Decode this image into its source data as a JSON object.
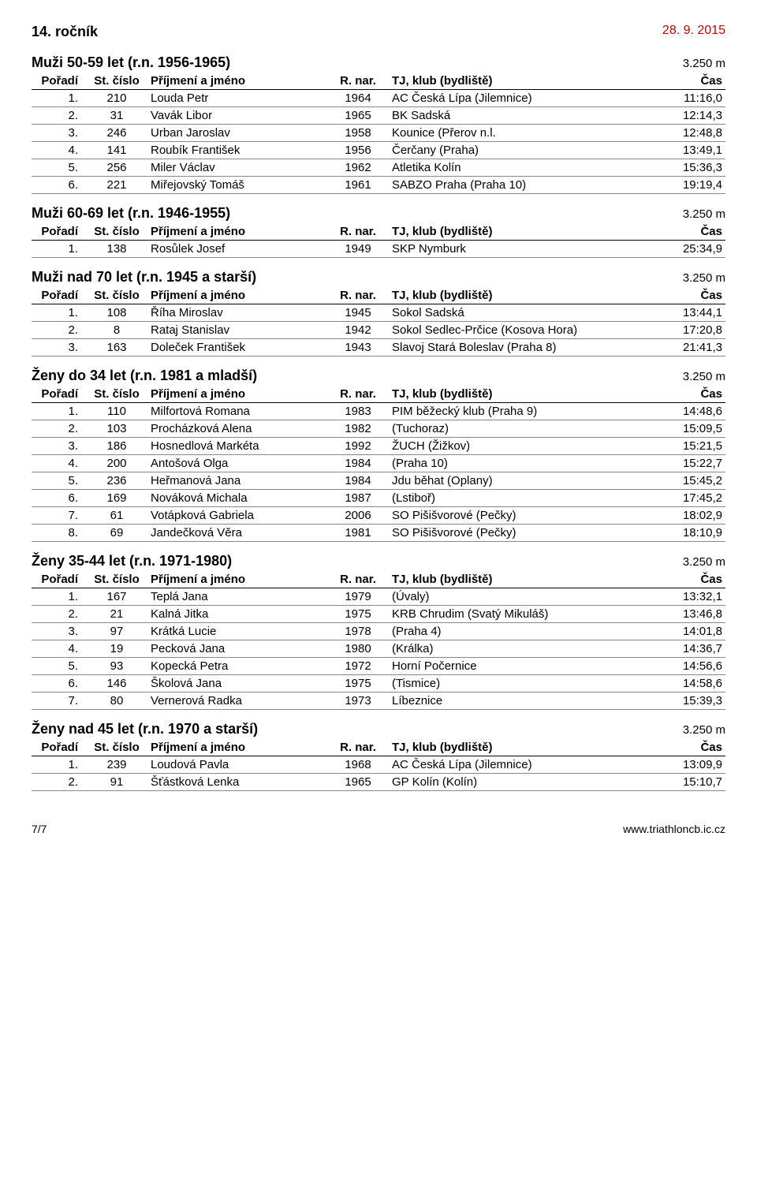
{
  "header": {
    "left": "14. ročník",
    "right": "28. 9. 2015"
  },
  "columns": {
    "poradi": "Pořadí",
    "stcislo": "St. číslo",
    "jmeno": "Příjmení a jméno",
    "narozen": "R. nar.",
    "klub": "TJ, klub (bydliště)",
    "cas": "Čas"
  },
  "sections": [
    {
      "title": "Muži 50-59 let (r.n. 1956-1965)",
      "distance": "3.250 m",
      "rows": [
        {
          "p": "1.",
          "s": "210",
          "n": "Louda Petr",
          "y": "1964",
          "c": "AC Česká Lípa (Jilemnice)",
          "t": "11:16,0"
        },
        {
          "p": "2.",
          "s": "31",
          "n": "Vavák Libor",
          "y": "1965",
          "c": "BK Sadská",
          "t": "12:14,3"
        },
        {
          "p": "3.",
          "s": "246",
          "n": "Urban Jaroslav",
          "y": "1958",
          "c": "Kounice (Přerov n.l.",
          "t": "12:48,8"
        },
        {
          "p": "4.",
          "s": "141",
          "n": "Roubík František",
          "y": "1956",
          "c": "Čerčany (Praha)",
          "t": "13:49,1"
        },
        {
          "p": "5.",
          "s": "256",
          "n": "Miler Václav",
          "y": "1962",
          "c": "Atletika Kolín",
          "t": "15:36,3"
        },
        {
          "p": "6.",
          "s": "221",
          "n": "Miřejovský Tomáš",
          "y": "1961",
          "c": "SABZO Praha (Praha 10)",
          "t": "19:19,4"
        }
      ]
    },
    {
      "title": "Muži 60-69 let (r.n. 1946-1955)",
      "distance": "3.250 m",
      "rows": [
        {
          "p": "1.",
          "s": "138",
          "n": "Rosůlek Josef",
          "y": "1949",
          "c": "SKP Nymburk",
          "t": "25:34,9"
        }
      ]
    },
    {
      "title": "Muži nad 70 let (r.n. 1945 a starší)",
      "distance": "3.250 m",
      "rows": [
        {
          "p": "1.",
          "s": "108",
          "n": "Říha Miroslav",
          "y": "1945",
          "c": "Sokol Sadská",
          "t": "13:44,1"
        },
        {
          "p": "2.",
          "s": "8",
          "n": "Rataj Stanislav",
          "y": "1942",
          "c": "Sokol Sedlec-Prčice (Kosova Hora)",
          "t": "17:20,8"
        },
        {
          "p": "3.",
          "s": "163",
          "n": "Doleček František",
          "y": "1943",
          "c": "Slavoj Stará Boleslav (Praha 8)",
          "t": "21:41,3"
        }
      ]
    },
    {
      "title": "Ženy do 34 let (r.n. 1981 a mladší)",
      "distance": "3.250 m",
      "rows": [
        {
          "p": "1.",
          "s": "110",
          "n": "Milfortová Romana",
          "y": "1983",
          "c": "PIM běžecký klub (Praha 9)",
          "t": "14:48,6"
        },
        {
          "p": "2.",
          "s": "103",
          "n": "Procházková Alena",
          "y": "1982",
          "c": "(Tuchoraz)",
          "t": "15:09,5"
        },
        {
          "p": "3.",
          "s": "186",
          "n": "Hosnedlová Markéta",
          "y": "1992",
          "c": "ŽUCH (Žižkov)",
          "t": "15:21,5"
        },
        {
          "p": "4.",
          "s": "200",
          "n": "Antošová Olga",
          "y": "1984",
          "c": "(Praha 10)",
          "t": "15:22,7"
        },
        {
          "p": "5.",
          "s": "236",
          "n": "Heřmanová Jana",
          "y": "1984",
          "c": "Jdu běhat (Oplany)",
          "t": "15:45,2"
        },
        {
          "p": "6.",
          "s": "169",
          "n": "Nováková Michala",
          "y": "1987",
          "c": "(Lstiboř)",
          "t": "17:45,2"
        },
        {
          "p": "7.",
          "s": "61",
          "n": "Votápková Gabriela",
          "y": "2006",
          "c": "SO Pišišvorové (Pečky)",
          "t": "18:02,9"
        },
        {
          "p": "8.",
          "s": "69",
          "n": "Jandečková Věra",
          "y": "1981",
          "c": "SO Pišišvorové (Pečky)",
          "t": "18:10,9"
        }
      ]
    },
    {
      "title": "Ženy 35-44 let (r.n. 1971-1980)",
      "distance": "3.250 m",
      "rows": [
        {
          "p": "1.",
          "s": "167",
          "n": "Teplá Jana",
          "y": "1979",
          "c": "(Úvaly)",
          "t": "13:32,1"
        },
        {
          "p": "2.",
          "s": "21",
          "n": "Kalná Jitka",
          "y": "1975",
          "c": "KRB Chrudim (Svatý Mikuláš)",
          "t": "13:46,8"
        },
        {
          "p": "3.",
          "s": "97",
          "n": "Krátká Lucie",
          "y": "1978",
          "c": "(Praha 4)",
          "t": "14:01,8"
        },
        {
          "p": "4.",
          "s": "19",
          "n": "Pecková Jana",
          "y": "1980",
          "c": "(Králka)",
          "t": "14:36,7"
        },
        {
          "p": "5.",
          "s": "93",
          "n": "Kopecká Petra",
          "y": "1972",
          "c": "Horní Počernice",
          "t": "14:56,6"
        },
        {
          "p": "6.",
          "s": "146",
          "n": "Školová Jana",
          "y": "1975",
          "c": "(Tismice)",
          "t": "14:58,6"
        },
        {
          "p": "7.",
          "s": "80",
          "n": "Vernerová Radka",
          "y": "1973",
          "c": "Líbeznice",
          "t": "15:39,3"
        }
      ]
    },
    {
      "title": "Ženy nad 45 let (r.n. 1970 a starší)",
      "distance": "3.250 m",
      "rows": [
        {
          "p": "1.",
          "s": "239",
          "n": "Loudová Pavla",
          "y": "1968",
          "c": "AC Česká Lípa (Jilemnice)",
          "t": "13:09,9"
        },
        {
          "p": "2.",
          "s": "91",
          "n": "Šťástková Lenka",
          "y": "1965",
          "c": "GP Kolín (Kolín)",
          "t": "15:10,7"
        }
      ]
    }
  ],
  "footer": {
    "page": "7/7",
    "url": "www.triathloncb.ic.cz"
  }
}
